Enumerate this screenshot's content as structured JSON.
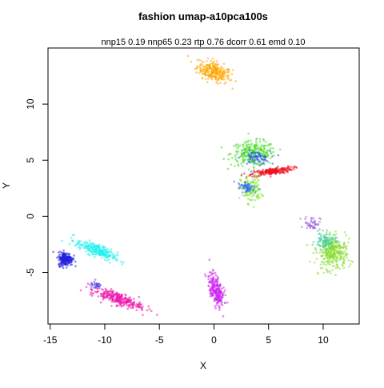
{
  "chart_data": {
    "type": "scatter",
    "title": "fashion umap-a10pca100s",
    "subtitle": "nnp15 0.19 nnp65 0.23 rtp 0.76 dcorr 0.61 emd 0.10",
    "xlabel": "X",
    "ylabel": "Y",
    "xlim": [
      -15.2,
      13.3
    ],
    "ylim": [
      -9.6,
      15.0
    ],
    "xticks": [
      -15,
      -10,
      -5,
      0,
      5,
      10
    ],
    "yticks": [
      -5,
      0,
      5,
      10
    ],
    "grid": false,
    "legend": "none",
    "clusters": [
      {
        "color": "#FFA500",
        "cx": 0.0,
        "cy": 12.9,
        "sx": 1.3,
        "sy": 0.7,
        "angle": -20,
        "n": 260
      },
      {
        "color": "#44DD22",
        "cx": 3.6,
        "cy": 5.6,
        "sx": 1.7,
        "sy": 0.9,
        "angle": 0,
        "n": 260
      },
      {
        "color": "#2255EE",
        "cx": 3.8,
        "cy": 5.2,
        "sx": 1.1,
        "sy": 0.5,
        "angle": 0,
        "n": 70
      },
      {
        "color": "#EE1122",
        "cx": 5.3,
        "cy": 4.0,
        "sx": 1.6,
        "sy": 0.25,
        "angle": 8,
        "n": 220
      },
      {
        "color": "#7EE833",
        "cx": 3.4,
        "cy": 2.4,
        "sx": 0.8,
        "sy": 1.0,
        "angle": 0,
        "n": 140
      },
      {
        "color": "#3366FF",
        "cx": 3.0,
        "cy": 2.6,
        "sx": 0.7,
        "sy": 0.3,
        "angle": -20,
        "n": 60
      },
      {
        "color": "#88DD33",
        "cx": 10.9,
        "cy": -3.3,
        "sx": 1.1,
        "sy": 1.2,
        "angle": -15,
        "n": 320
      },
      {
        "color": "#33CC99",
        "cx": 10.2,
        "cy": -2.2,
        "sx": 0.8,
        "sy": 0.6,
        "angle": 0,
        "n": 80
      },
      {
        "color": "#9966DD",
        "cx": 9.0,
        "cy": -0.6,
        "sx": 0.6,
        "sy": 0.5,
        "angle": 0,
        "n": 50
      },
      {
        "color": "#22EEEE",
        "cx": -10.8,
        "cy": -3.0,
        "sx": 1.6,
        "sy": 0.45,
        "angle": -22,
        "n": 260
      },
      {
        "color": "#2222DD",
        "cx": -13.6,
        "cy": -3.8,
        "sx": 0.55,
        "sy": 0.5,
        "angle": 0,
        "n": 230
      },
      {
        "color": "#EE11AA",
        "cx": -8.9,
        "cy": -7.3,
        "sx": 2.0,
        "sy": 0.45,
        "angle": -18,
        "n": 280
      },
      {
        "color": "#4444EE",
        "cx": -10.8,
        "cy": -6.1,
        "sx": 0.4,
        "sy": 0.2,
        "angle": 0,
        "n": 25
      },
      {
        "color": "#CC22EE",
        "cx": 0.2,
        "cy": -6.6,
        "sx": 0.5,
        "sy": 1.3,
        "angle": 15,
        "n": 240
      }
    ]
  }
}
